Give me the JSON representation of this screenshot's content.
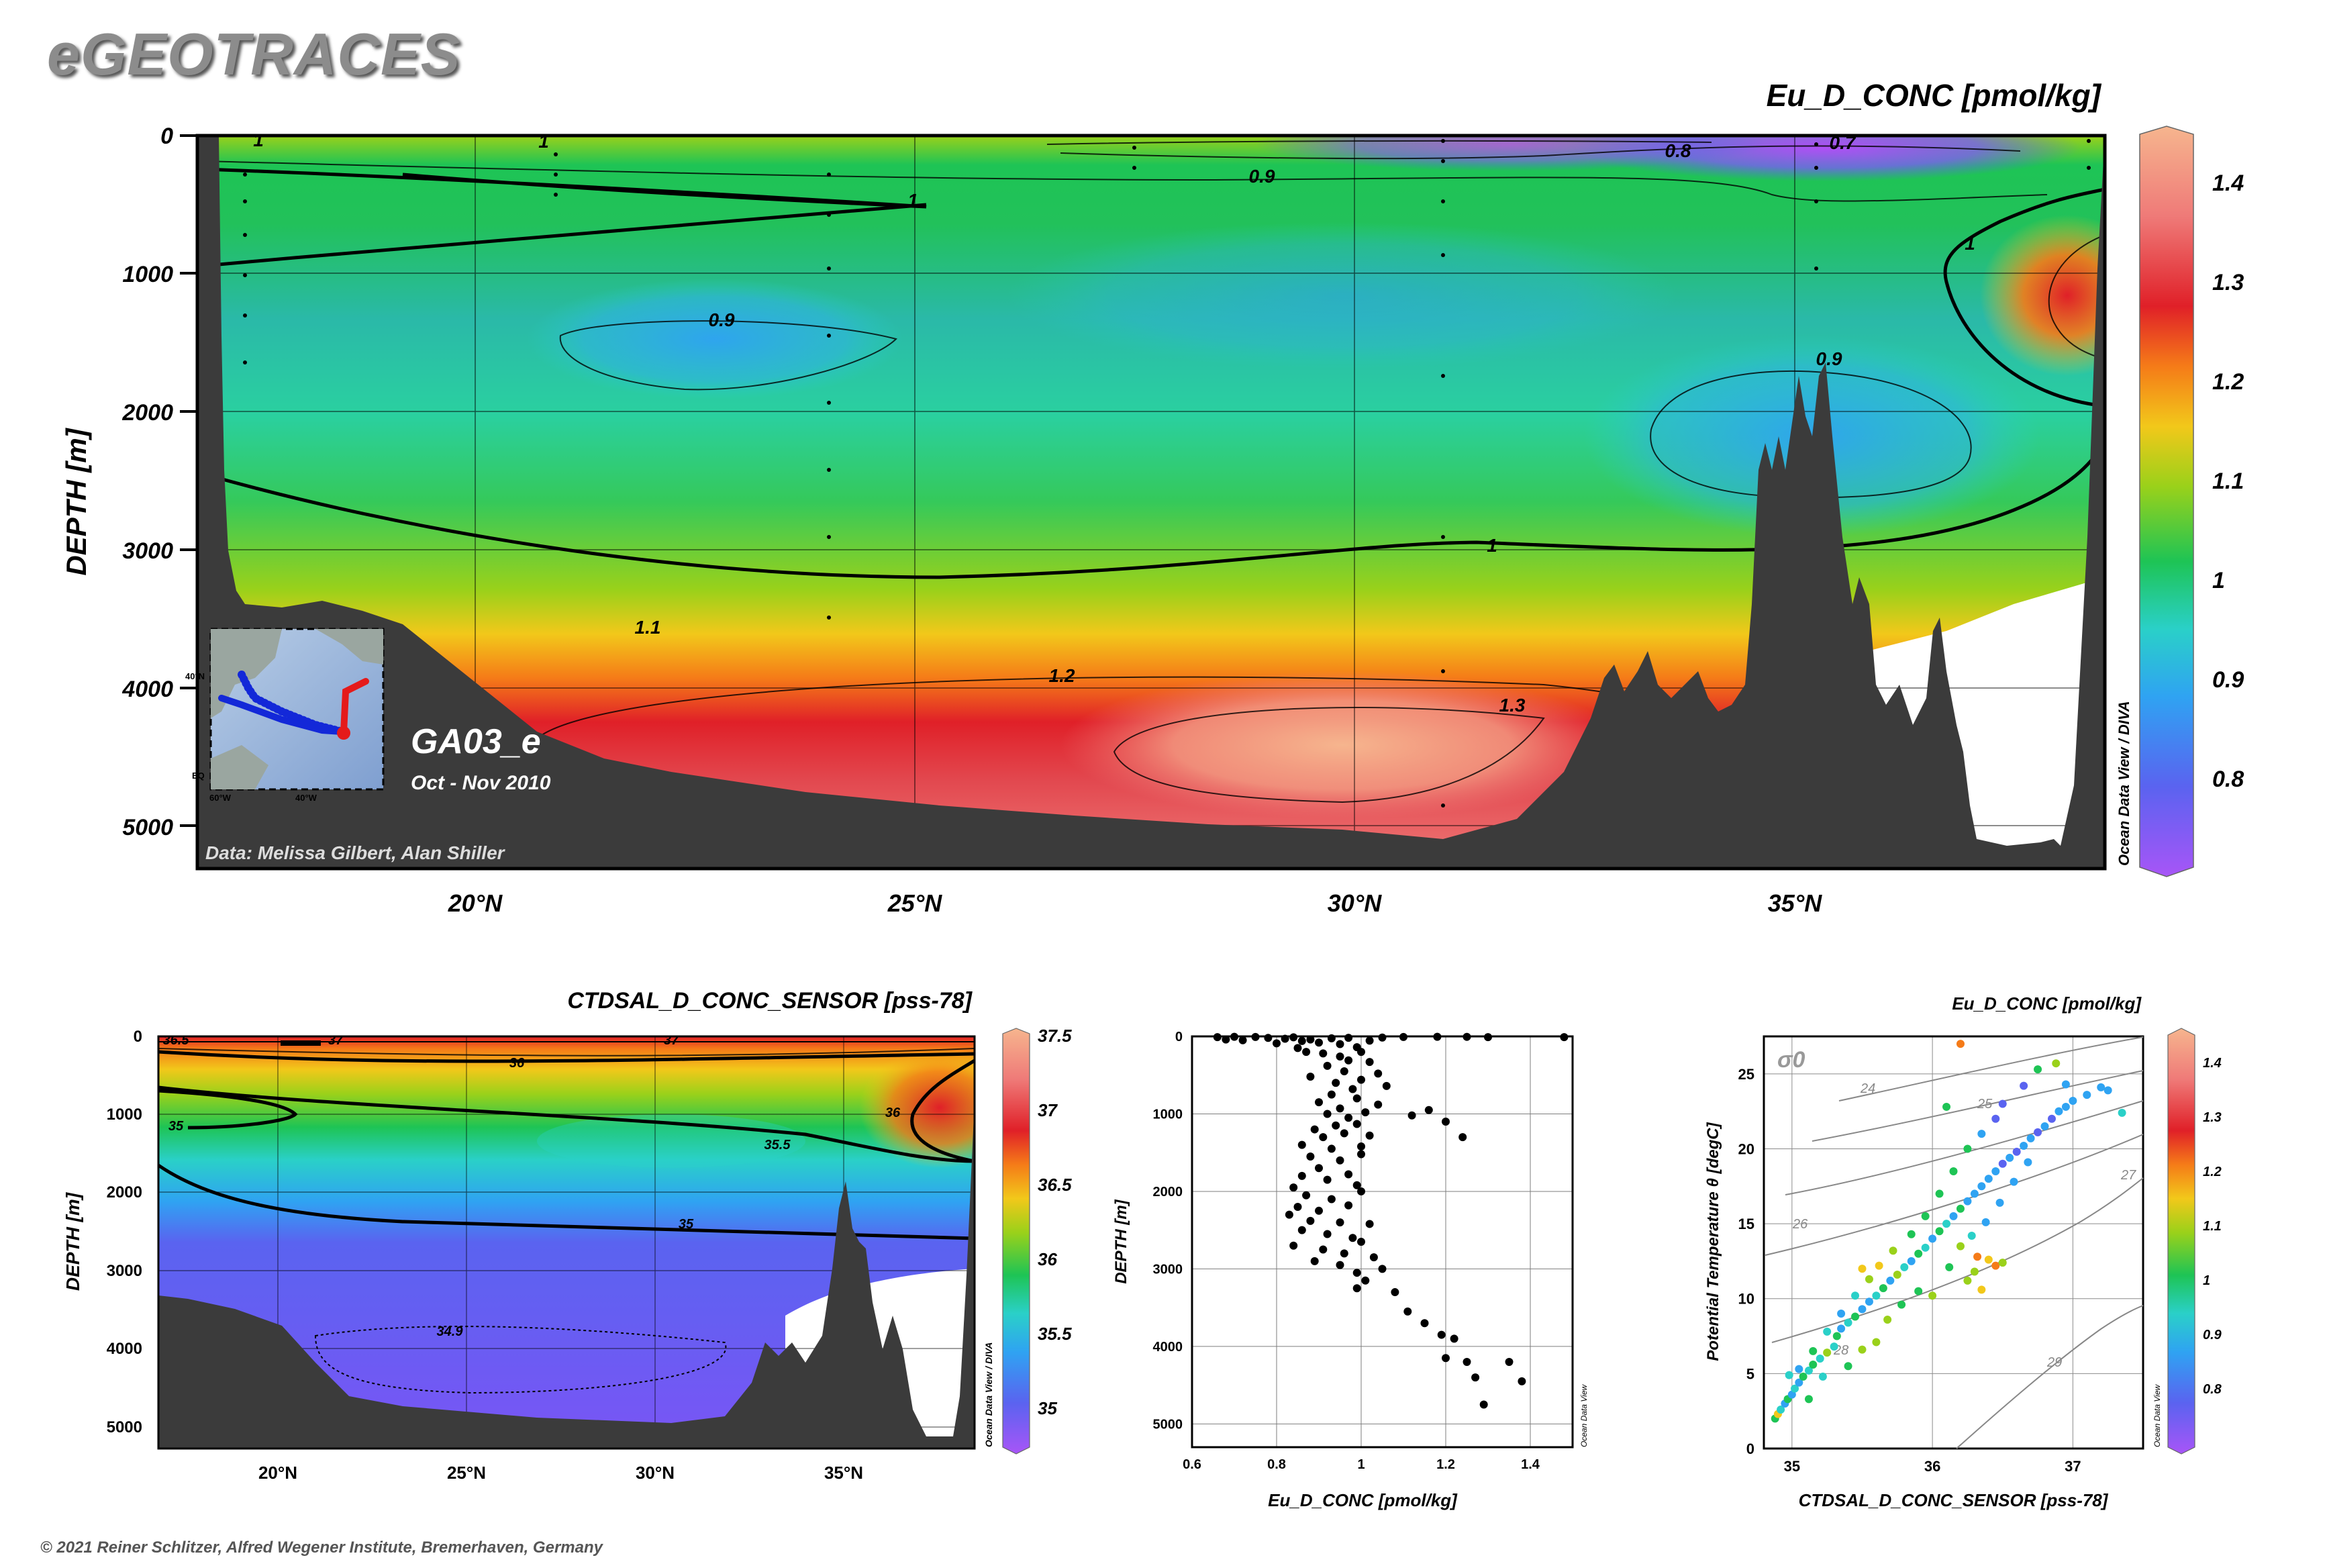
{
  "app": {
    "title": "eGEOTRACES",
    "copyright": "© 2021 Reiner Schlitzer, Alfred Wegener Institute, Bremerhaven, Germany"
  },
  "colors": {
    "background": "#ffffff",
    "bathymetry": "#3b3b3b",
    "contour": "#000000",
    "scatter_points": "#000000",
    "colormap": [
      "#a855f7",
      "#5a63f0",
      "#2fa3f2",
      "#2ad0c8",
      "#1ec455",
      "#9ad11a",
      "#f2c81a",
      "#f57b18",
      "#e02028",
      "#ef7a78",
      "#f6b58e"
    ]
  },
  "main_section": {
    "variable": "Eu_D_CONC [pmol/kg]",
    "cruise": "GA03_e",
    "period": "Oct - Nov 2010",
    "credit": "Data: Melissa Gilbert, Alan Shiller",
    "ylabel": "DEPTH [m]",
    "watermark": "Ocean Data View / DIVA",
    "inset_labels": [
      "40°N",
      "60°W",
      "40°W",
      "EQ"
    ]
  },
  "sal_section": {
    "variable": "CTDSAL_D_CONC_SENSOR [pss-78]",
    "ylabel": "DEPTH [m]",
    "watermark": "Ocean Data View / DIVA"
  },
  "profile": {
    "xlabel": "Eu_D_CONC [pmol/kg]",
    "ylabel": "DEPTH [m]",
    "watermark": "Ocean Data View"
  },
  "ts": {
    "title": "Eu_D_CONC [pmol/kg]",
    "xlabel": "CTDSAL_D_CONC_SENSOR [pss-78]",
    "ylabel": "Potential Temperature θ [degC]",
    "sigma_label": "σ0",
    "watermark": "Ocean Data View"
  },
  "chart_data": [
    {
      "type": "heatmap",
      "title": "Eu_D_CONC [pmol/kg]",
      "xlabel": "",
      "ylabel": "DEPTH [m]",
      "x_ticks": [
        "20°N",
        "25°N",
        "30°N",
        "35°N"
      ],
      "x_tick_values": [
        20,
        25,
        30,
        35
      ],
      "xlim": [
        16.8,
        38.5
      ],
      "y_ticks": [
        0,
        1000,
        2000,
        3000,
        4000,
        5000
      ],
      "ylim": [
        5300,
        0
      ],
      "colorbar": {
        "min": 0.72,
        "max": 1.45,
        "ticks": [
          0.8,
          0.9,
          1,
          1.1,
          1.2,
          1.3,
          1.4
        ]
      },
      "contour_labels": [
        "1",
        "1",
        "0.8",
        "0.7",
        "0.9",
        "1",
        "1",
        "0.9",
        "0.9",
        "1",
        "1.1",
        "1.2",
        "1.3"
      ],
      "grid": true
    },
    {
      "type": "heatmap",
      "title": "CTDSAL_D_CONC_SENSOR [pss-78]",
      "xlabel": "",
      "ylabel": "DEPTH [m]",
      "x_ticks": [
        "20°N",
        "25°N",
        "30°N",
        "35°N"
      ],
      "x_tick_values": [
        20,
        25,
        30,
        35
      ],
      "xlim": [
        16.8,
        38.5
      ],
      "y_ticks": [
        0,
        1000,
        2000,
        3000,
        4000,
        5000
      ],
      "ylim": [
        5300,
        0
      ],
      "colorbar": {
        "min": 34.8,
        "max": 37.5,
        "ticks": [
          35,
          35.5,
          36,
          36.5,
          37,
          37.5
        ]
      },
      "contour_labels": [
        "36.5",
        "37",
        "37",
        "36",
        "35",
        "36",
        "35.5",
        "35",
        "34.9"
      ],
      "grid": true
    },
    {
      "type": "scatter",
      "title": "",
      "xlabel": "Eu_D_CONC [pmol/kg]",
      "ylabel": "DEPTH [m]",
      "xlim": [
        0.6,
        1.5
      ],
      "ylim": [
        5300,
        0
      ],
      "x_ticks": [
        0.6,
        0.8,
        1,
        1.2,
        1.4
      ],
      "y_ticks": [
        0,
        1000,
        2000,
        3000,
        4000,
        5000
      ],
      "points": [
        [
          0.66,
          10
        ],
        [
          0.7,
          5
        ],
        [
          0.75,
          8
        ],
        [
          0.78,
          20
        ],
        [
          0.82,
          30
        ],
        [
          0.84,
          12
        ],
        [
          0.86,
          60
        ],
        [
          0.88,
          40
        ],
        [
          0.9,
          80
        ],
        [
          0.93,
          25
        ],
        [
          0.95,
          100
        ],
        [
          0.97,
          18
        ],
        [
          0.99,
          140
        ],
        [
          1.02,
          55
        ],
        [
          1.05,
          15
        ],
        [
          1.1,
          8
        ],
        [
          1.18,
          5
        ],
        [
          1.25,
          6
        ],
        [
          1.48,
          10
        ],
        [
          0.68,
          40
        ],
        [
          0.72,
          50
        ],
        [
          0.8,
          90
        ],
        [
          0.85,
          150
        ],
        [
          0.87,
          200
        ],
        [
          0.91,
          220
        ],
        [
          0.95,
          260
        ],
        [
          1.0,
          200
        ],
        [
          0.97,
          310
        ],
        [
          1.02,
          330
        ],
        [
          0.92,
          380
        ],
        [
          0.96,
          450
        ],
        [
          1.04,
          480
        ],
        [
          0.88,
          520
        ],
        [
          0.94,
          600
        ],
        [
          1.0,
          560
        ],
        [
          0.98,
          680
        ],
        [
          1.06,
          640
        ],
        [
          0.93,
          750
        ],
        [
          0.9,
          850
        ],
        [
          0.99,
          800
        ],
        [
          1.04,
          880
        ],
        [
          0.95,
          930
        ],
        [
          0.92,
          1000
        ],
        [
          0.97,
          1050
        ],
        [
          1.01,
          980
        ],
        [
          1.16,
          950
        ],
        [
          1.12,
          1020
        ],
        [
          0.94,
          1150
        ],
        [
          0.89,
          1200
        ],
        [
          0.99,
          1130
        ],
        [
          0.96,
          1250
        ],
        [
          0.91,
          1300
        ],
        [
          1.02,
          1280
        ],
        [
          0.86,
          1400
        ],
        [
          0.93,
          1450
        ],
        [
          1.0,
          1420
        ],
        [
          0.88,
          1550
        ],
        [
          0.95,
          1600
        ],
        [
          1.0,
          1520
        ],
        [
          0.9,
          1700
        ],
        [
          0.86,
          1800
        ],
        [
          0.97,
          1780
        ],
        [
          0.92,
          1850
        ],
        [
          0.84,
          1950
        ],
        [
          0.99,
          1920
        ],
        [
          0.87,
          2050
        ],
        [
          0.93,
          2100
        ],
        [
          1.0,
          2000
        ],
        [
          0.85,
          2200
        ],
        [
          0.9,
          2250
        ],
        [
          0.97,
          2180
        ],
        [
          0.83,
          2300
        ],
        [
          0.88,
          2380
        ],
        [
          0.95,
          2400
        ],
        [
          1.02,
          2420
        ],
        [
          0.86,
          2500
        ],
        [
          0.92,
          2550
        ],
        [
          0.98,
          2600
        ],
        [
          0.84,
          2700
        ],
        [
          0.91,
          2750
        ],
        [
          0.96,
          2800
        ],
        [
          1.0,
          2650
        ],
        [
          0.89,
          2900
        ],
        [
          0.95,
          2950
        ],
        [
          1.03,
          2850
        ],
        [
          0.99,
          3050
        ],
        [
          1.01,
          3150
        ],
        [
          1.05,
          3000
        ],
        [
          0.99,
          3250
        ],
        [
          1.08,
          3300
        ],
        [
          1.11,
          3550
        ],
        [
          1.15,
          3700
        ],
        [
          1.19,
          3850
        ],
        [
          1.22,
          3900
        ],
        [
          1.2,
          4150
        ],
        [
          1.25,
          4200
        ],
        [
          1.27,
          4400
        ],
        [
          1.35,
          4200
        ],
        [
          1.38,
          4450
        ],
        [
          1.29,
          4750
        ],
        [
          1.24,
          1300
        ],
        [
          1.2,
          1100
        ],
        [
          1.3,
          10
        ]
      ],
      "grid": true
    },
    {
      "type": "scatter",
      "title": "Eu_D_CONC [pmol/kg]",
      "xlabel": "CTDSAL_D_CONC_SENSOR [pss-78]",
      "ylabel": "Potential Temperature θ [degC]",
      "xlim": [
        34.8,
        37.5
      ],
      "ylim": [
        0,
        27.5
      ],
      "x_ticks": [
        35,
        36,
        37
      ],
      "y_ticks": [
        0,
        5,
        10,
        15,
        20,
        25
      ],
      "isopycnal_labels": [
        "24",
        "25",
        "26",
        "27",
        "28",
        "29"
      ],
      "colorbar": {
        "min": 0.72,
        "max": 1.45,
        "ticks": [
          0.8,
          0.9,
          1,
          1.1,
          1.2,
          1.3,
          1.4
        ]
      },
      "points": [
        [
          34.88,
          2.0,
          1.0
        ],
        [
          34.9,
          2.3,
          1.15
        ],
        [
          34.92,
          2.6,
          0.95
        ],
        [
          34.95,
          3.0,
          0.9
        ],
        [
          34.97,
          3.3,
          1.0
        ],
        [
          35.0,
          3.6,
          0.9
        ],
        [
          35.02,
          4.0,
          0.95
        ],
        [
          35.05,
          4.4,
          0.85
        ],
        [
          35.08,
          4.8,
          1.0
        ],
        [
          35.12,
          5.2,
          0.92
        ],
        [
          35.15,
          5.6,
          1.0
        ],
        [
          35.2,
          6.0,
          0.95
        ],
        [
          35.25,
          6.4,
          1.05
        ],
        [
          35.3,
          6.8,
          0.95
        ],
        [
          35.32,
          7.5,
          1.0
        ],
        [
          35.35,
          8.0,
          0.9
        ],
        [
          35.4,
          8.4,
          0.95
        ],
        [
          35.45,
          8.8,
          1.0
        ],
        [
          35.5,
          9.3,
          0.9
        ],
        [
          35.55,
          9.8,
          0.85
        ],
        [
          35.6,
          10.2,
          0.95
        ],
        [
          35.65,
          10.7,
          1.0
        ],
        [
          35.7,
          11.2,
          0.9
        ],
        [
          35.75,
          11.6,
          1.05
        ],
        [
          35.8,
          12.1,
          0.95
        ],
        [
          35.85,
          12.5,
          0.9
        ],
        [
          35.9,
          13.0,
          1.0
        ],
        [
          35.95,
          13.4,
          0.95
        ],
        [
          36.0,
          14.0,
          0.9
        ],
        [
          36.05,
          14.5,
          1.0
        ],
        [
          36.1,
          15.0,
          0.95
        ],
        [
          36.15,
          15.5,
          0.9
        ],
        [
          36.2,
          16.0,
          1.0
        ],
        [
          36.25,
          16.5,
          0.88
        ],
        [
          36.3,
          17.0,
          0.9
        ],
        [
          36.35,
          17.5,
          0.85
        ],
        [
          36.4,
          18.0,
          0.9
        ],
        [
          36.45,
          18.5,
          0.85
        ],
        [
          36.5,
          19.0,
          0.82
        ],
        [
          36.55,
          19.4,
          0.86
        ],
        [
          36.6,
          19.8,
          0.8
        ],
        [
          36.65,
          20.2,
          0.9
        ],
        [
          36.7,
          20.7,
          0.85
        ],
        [
          36.75,
          21.1,
          0.8
        ],
        [
          36.8,
          21.5,
          0.9
        ],
        [
          36.85,
          22.0,
          0.82
        ],
        [
          36.9,
          22.5,
          0.88
        ],
        [
          36.95,
          22.8,
          0.85
        ],
        [
          37.0,
          23.2,
          0.9
        ],
        [
          37.1,
          23.6,
          0.86
        ],
        [
          37.2,
          24.1,
          0.88
        ],
        [
          36.88,
          25.7,
          1.1
        ],
        [
          36.75,
          25.3,
          1.0
        ],
        [
          36.65,
          24.2,
          0.8
        ],
        [
          36.5,
          23.0,
          0.8
        ],
        [
          36.45,
          22.0,
          0.82
        ],
        [
          36.35,
          21.0,
          0.85
        ],
        [
          36.25,
          20.0,
          1.0
        ],
        [
          36.15,
          18.5,
          1.0
        ],
        [
          36.05,
          17.0,
          1.0
        ],
        [
          35.95,
          15.5,
          1.0
        ],
        [
          35.85,
          14.3,
          1.0
        ],
        [
          35.72,
          13.2,
          1.1
        ],
        [
          35.62,
          12.2,
          1.15
        ],
        [
          35.55,
          11.3,
          1.1
        ],
        [
          35.45,
          10.2,
          0.95
        ],
        [
          35.35,
          9.0,
          0.9
        ],
        [
          35.25,
          7.8,
          0.95
        ],
        [
          35.15,
          6.5,
          1.0
        ],
        [
          35.05,
          5.3,
          0.9
        ],
        [
          36.32,
          12.8,
          1.2
        ],
        [
          36.4,
          12.6,
          1.15
        ],
        [
          36.45,
          12.2,
          1.25
        ],
        [
          36.5,
          12.4,
          1.12
        ],
        [
          36.3,
          11.8,
          1.1
        ],
        [
          36.25,
          11.2,
          1.05
        ],
        [
          36.35,
          10.6,
          1.15
        ],
        [
          35.6,
          7.1,
          1.1
        ],
        [
          35.5,
          6.6,
          1.05
        ],
        [
          35.68,
          8.6,
          1.05
        ],
        [
          35.78,
          9.6,
          1.0
        ],
        [
          35.9,
          10.5,
          1.0
        ],
        [
          36.0,
          10.2,
          1.05
        ],
        [
          36.12,
          12.1,
          1.0
        ],
        [
          36.2,
          13.5,
          1.05
        ],
        [
          36.28,
          14.2,
          0.95
        ],
        [
          36.38,
          15.1,
          0.9
        ],
        [
          36.48,
          16.4,
          0.88
        ],
        [
          36.58,
          17.8,
          0.85
        ],
        [
          36.68,
          19.1,
          0.86
        ],
        [
          36.2,
          27.0,
          1.2
        ],
        [
          37.35,
          22.4,
          0.92
        ],
        [
          37.25,
          23.9,
          0.85
        ],
        [
          36.95,
          24.3,
          0.86
        ],
        [
          36.1,
          22.8,
          1.0
        ],
        [
          35.4,
          5.5,
          0.98
        ],
        [
          35.22,
          4.8,
          0.95
        ],
        [
          34.98,
          4.9,
          0.92
        ],
        [
          35.12,
          3.3,
          1.0
        ],
        [
          35.5,
          12.0,
          1.15
        ]
      ],
      "grid": true
    }
  ]
}
